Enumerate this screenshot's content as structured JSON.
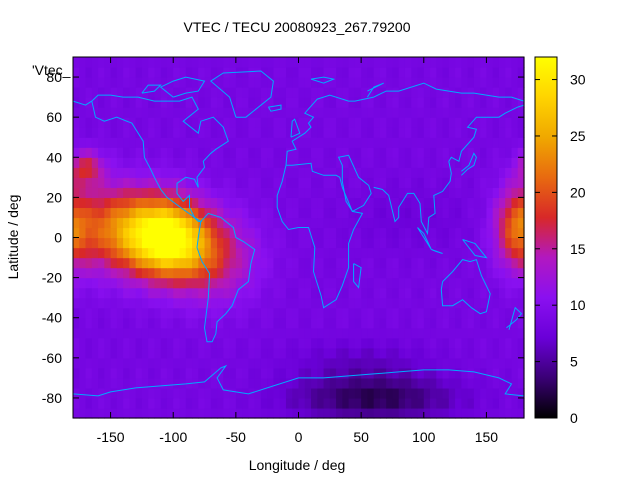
{
  "chart_data": {
    "type": "heatmap",
    "title": "VTEC / TECU 20080923_267.79200",
    "xlabel": "Longitude / deg",
    "ylabel": "Latitude / deg",
    "key_label": "'Vtec_",
    "xlim": [
      -180,
      180
    ],
    "ylim": [
      -90,
      90
    ],
    "xticks": [
      -150,
      -100,
      -50,
      0,
      50,
      100,
      150
    ],
    "yticks": [
      -80,
      -60,
      -40,
      -20,
      0,
      20,
      40,
      60,
      80
    ],
    "colorbar": {
      "range": [
        0,
        32
      ],
      "ticks": [
        0,
        5,
        10,
        15,
        20,
        25,
        30
      ],
      "stops": [
        "#000000",
        "#3a0075",
        "#6a00d8",
        "#8a10f0",
        "#b218c0",
        "#d82828",
        "#e86a10",
        "#f0a800",
        "#ffd400",
        "#ffff00"
      ]
    },
    "grid_resolution_deg": 5,
    "colormap_name": "gnuplot-pm3d",
    "coastline_color": "#00aaff",
    "anomalies": [
      {
        "lon": -105,
        "lat": 0,
        "sigma_lon": 22,
        "sigma_lat": 13,
        "amplitude": 22
      },
      {
        "lon": -145,
        "lat": 5,
        "sigma_lon": 28,
        "sigma_lat": 15,
        "amplitude": 12
      },
      {
        "lon": -70,
        "lat": -10,
        "sigma_lon": 25,
        "sigma_lat": 15,
        "amplitude": 8
      },
      {
        "lon": 175,
        "lat": 5,
        "sigma_lon": 12,
        "sigma_lat": 14,
        "amplitude": 10
      },
      {
        "lon": -170,
        "lat": 35,
        "sigma_lon": 10,
        "sigma_lat": 6,
        "amplitude": 8
      },
      {
        "lon": 60,
        "lat": -80,
        "sigma_lon": 45,
        "sigma_lat": 8,
        "amplitude": -6
      },
      {
        "lon": 50,
        "lat": -62,
        "sigma_lon": 40,
        "sigma_lat": 8,
        "amplitude": -2
      },
      {
        "lon": 90,
        "lat": 10,
        "sigma_lon": 40,
        "sigma_lat": 12,
        "amplitude": -1
      }
    ],
    "base_value": 8.5
  }
}
